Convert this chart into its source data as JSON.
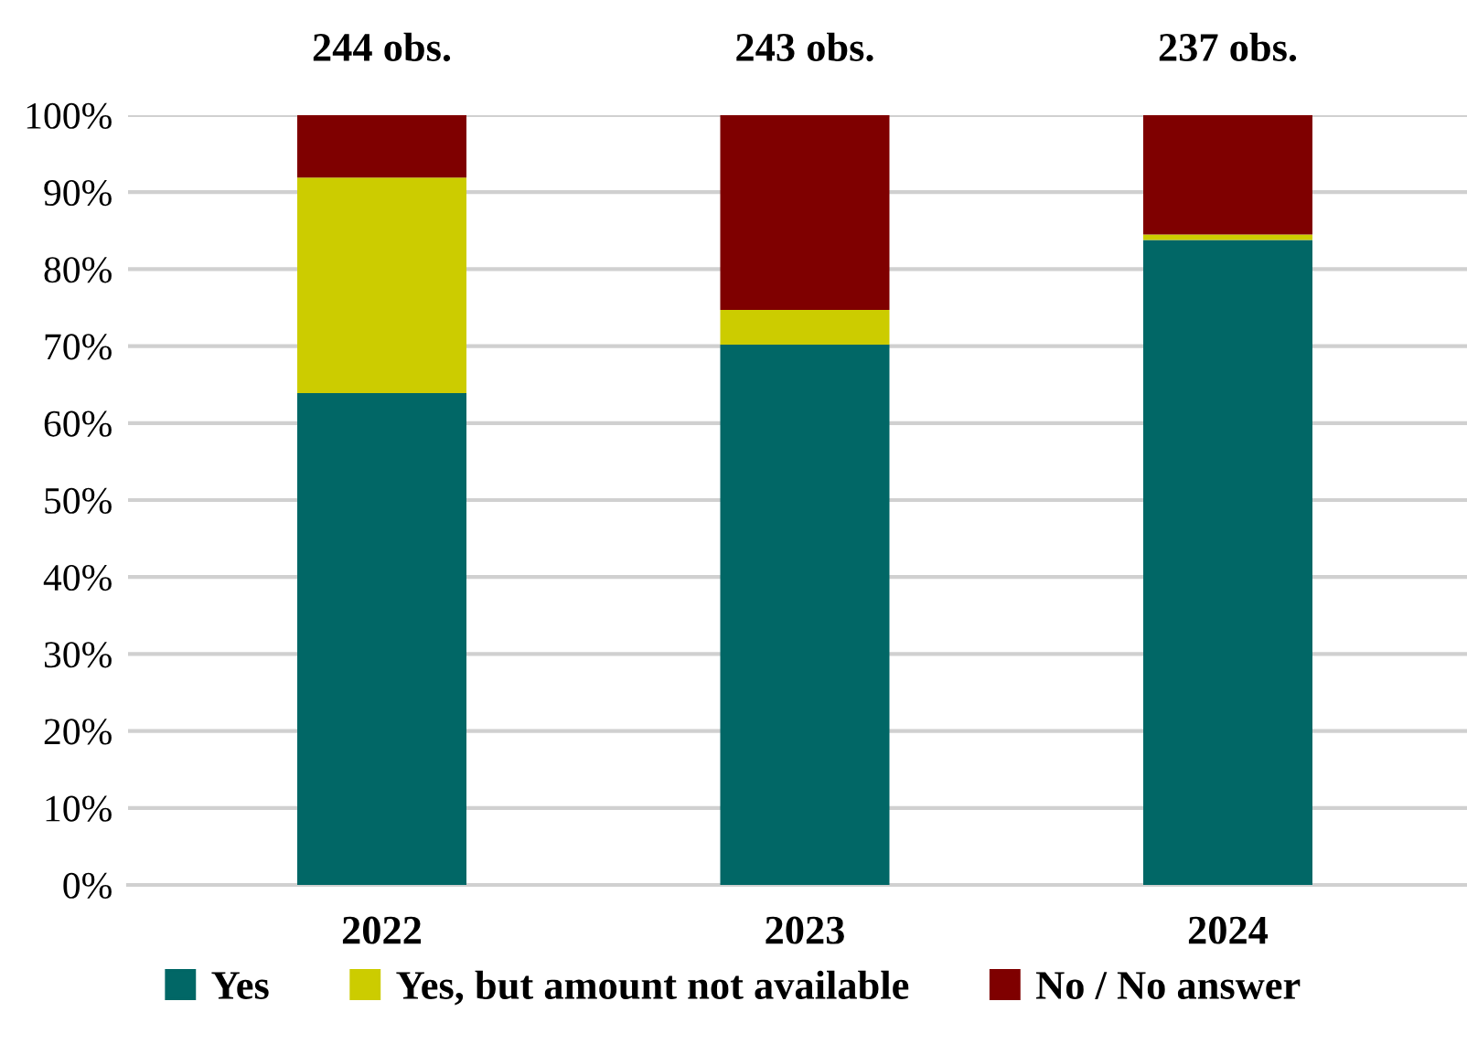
{
  "chart_data": {
    "type": "bar",
    "stacked": true,
    "categories": [
      "2022",
      "2023",
      "2024"
    ],
    "series": [
      {
        "name": "Yes",
        "color": "#016766",
        "values": [
          63.9,
          70.2,
          83.8
        ]
      },
      {
        "name": "Yes, but amount not available",
        "color": "#cccc00",
        "values": [
          28.0,
          4.5,
          0.7
        ]
      },
      {
        "name": "No / No answer",
        "color": "#7f0000",
        "values": [
          8.1,
          25.3,
          15.5
        ]
      }
    ],
    "ylim": [
      0,
      100
    ],
    "yticks": [
      {
        "value": 0,
        "label": "0%"
      },
      {
        "value": 10,
        "label": "10%"
      },
      {
        "value": 20,
        "label": "20%"
      },
      {
        "value": 30,
        "label": "30%"
      },
      {
        "value": 40,
        "label": "40%"
      },
      {
        "value": 50,
        "label": "50%"
      },
      {
        "value": 60,
        "label": "60%"
      },
      {
        "value": 70,
        "label": "70%"
      },
      {
        "value": 80,
        "label": "80%"
      },
      {
        "value": 90,
        "label": "90%"
      },
      {
        "value": 100,
        "label": "100%"
      }
    ],
    "annotations": [
      {
        "text": "244 obs.",
        "x": "2022",
        "y": 100
      },
      {
        "text": "243 obs.",
        "x": "2023",
        "y": 100
      },
      {
        "text": "237 obs.",
        "x": "2024",
        "y": 100
      }
    ],
    "grid": "y",
    "legend": "bottom"
  }
}
